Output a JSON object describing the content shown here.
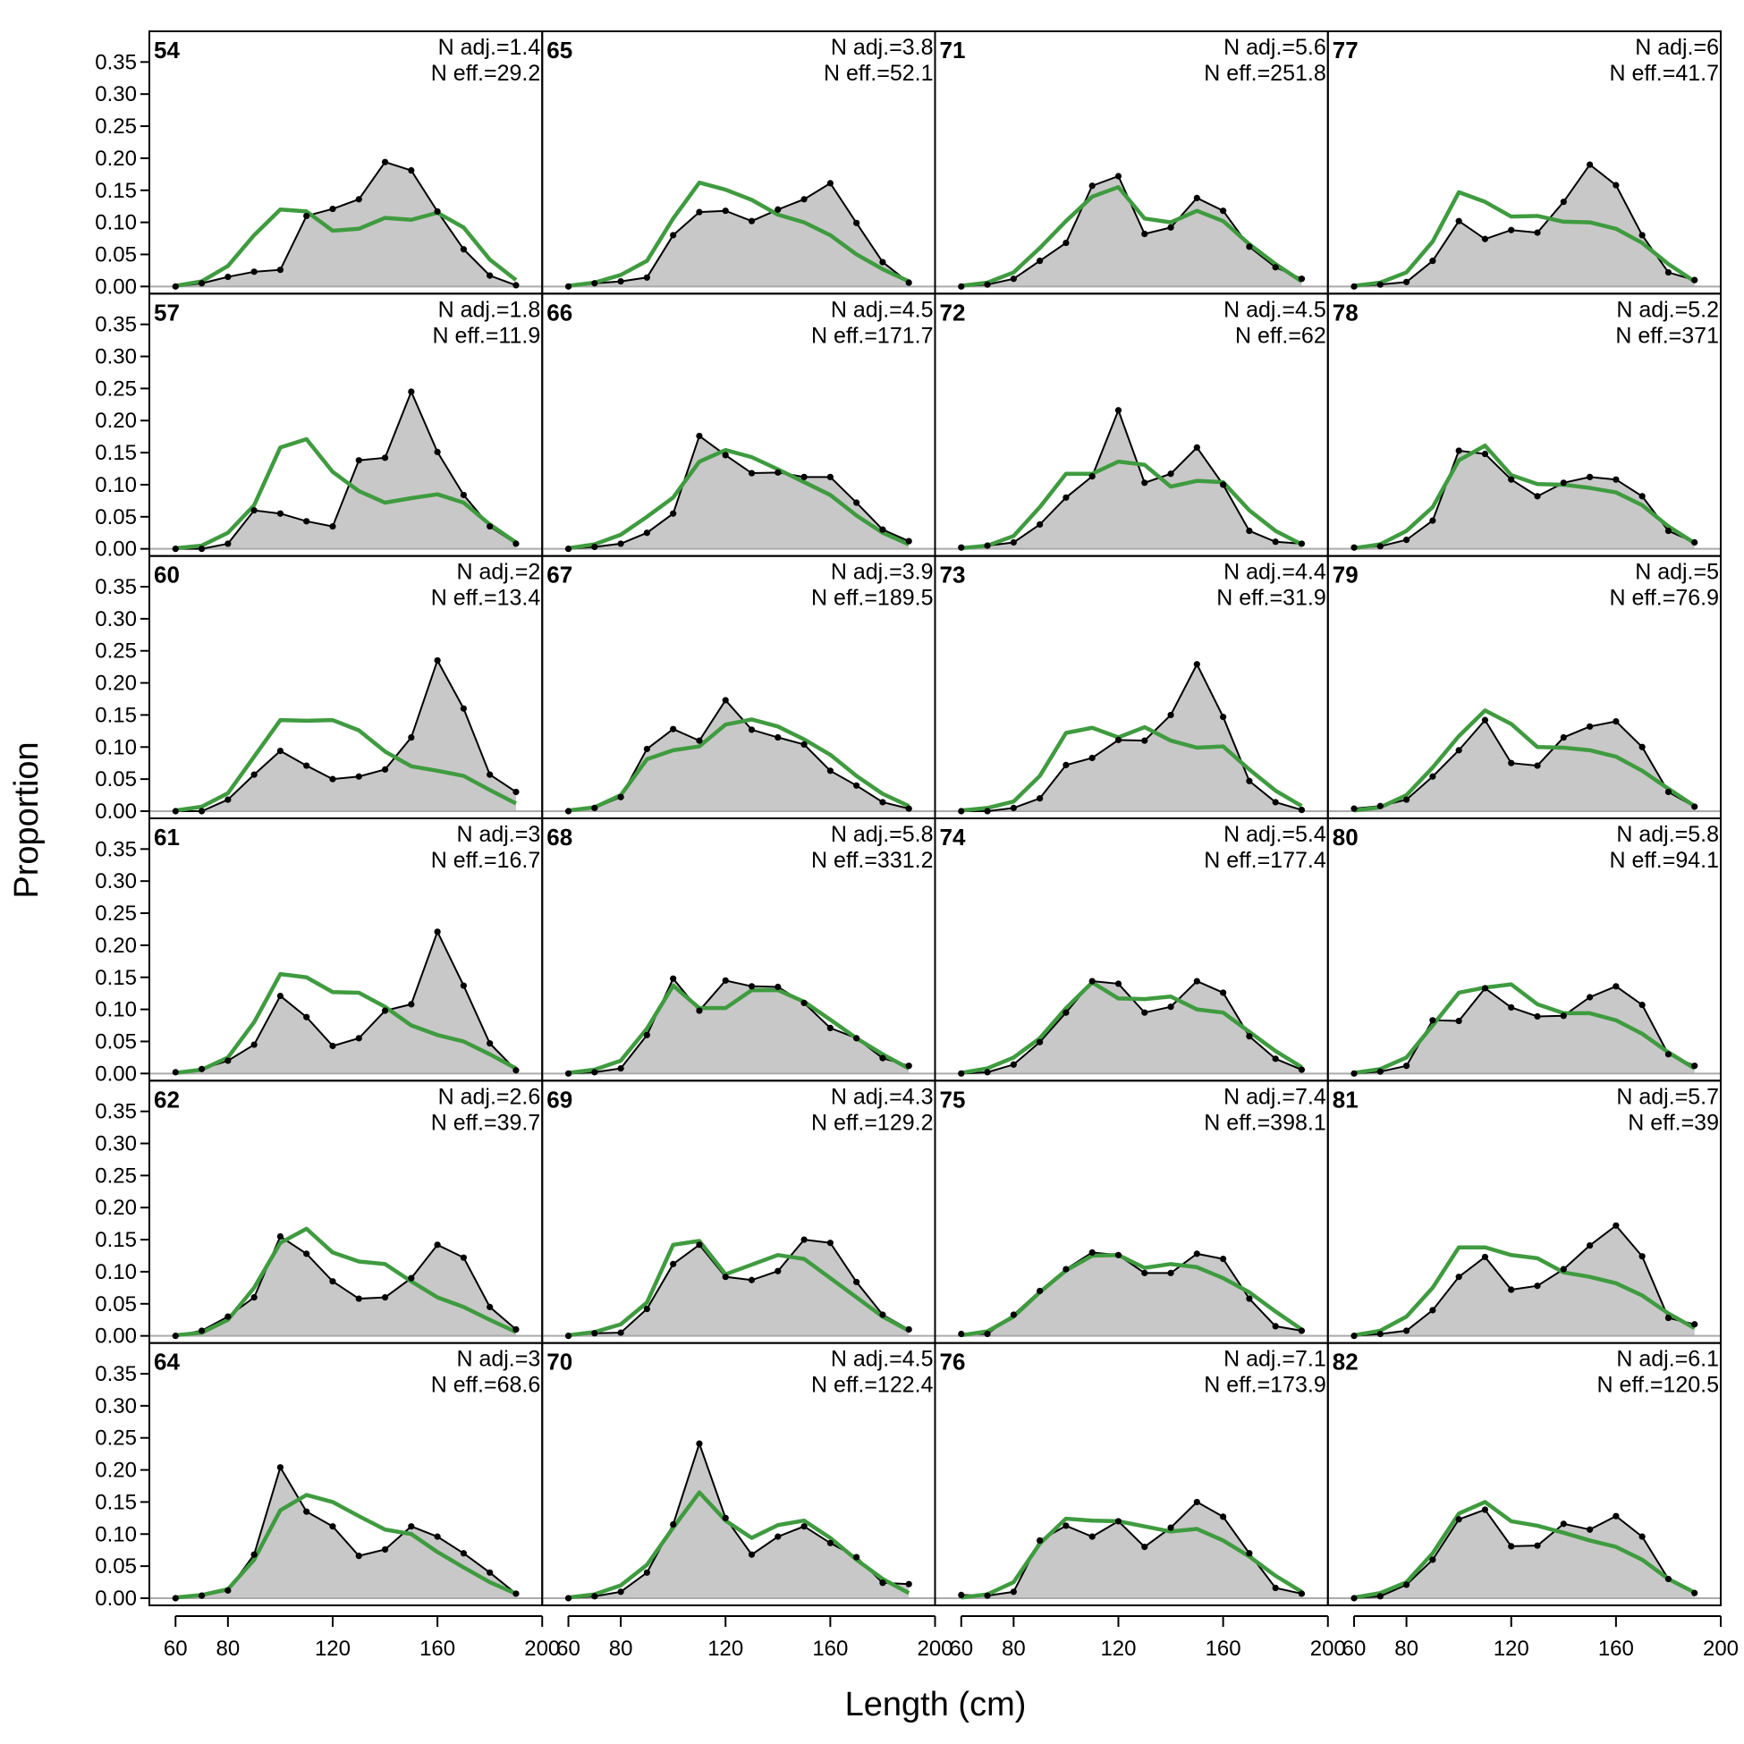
{
  "chart_data": {
    "type": "area",
    "xlabel": "Length (cm)",
    "ylabel": "Proportion",
    "xlim": [
      50,
      200
    ],
    "ylim": [
      0,
      0.37
    ],
    "x_ticks": [
      60,
      80,
      120,
      160,
      200
    ],
    "y_ticks": [
      0.0,
      0.05,
      0.1,
      0.15,
      0.2,
      0.25,
      0.3,
      0.35
    ],
    "y_tick_labels": [
      "0.00",
      "0.05",
      "0.10",
      "0.15",
      "0.20",
      "0.25",
      "0.30",
      "0.35"
    ],
    "grid": false,
    "colors": {
      "observed_fill": "#c8c8c8",
      "observed_line": "#000000",
      "expected_line": "#3f9b3f",
      "zero_line": "#aaaaaa"
    },
    "x": [
      60,
      70,
      80,
      90,
      100,
      110,
      120,
      130,
      140,
      150,
      160,
      170,
      180,
      190
    ],
    "layout": {
      "rows": 6,
      "cols": 4,
      "order": "column-major"
    },
    "panels": [
      {
        "label": "54",
        "n_adj": "N adj.=1.4",
        "n_eff": "N eff.=29.2",
        "observed": [
          0.0,
          0.005,
          0.015,
          0.023,
          0.026,
          0.11,
          0.121,
          0.136,
          0.194,
          0.181,
          0.117,
          0.058,
          0.017,
          0.002
        ],
        "expected": [
          0.001,
          0.008,
          0.032,
          0.08,
          0.12,
          0.117,
          0.087,
          0.09,
          0.107,
          0.104,
          0.115,
          0.092,
          0.042,
          0.01
        ]
      },
      {
        "label": "57",
        "n_adj": "N adj.=1.8",
        "n_eff": "N eff.=11.9",
        "observed": [
          0.0,
          0.0,
          0.008,
          0.06,
          0.055,
          0.043,
          0.035,
          0.138,
          0.142,
          0.245,
          0.151,
          0.084,
          0.035,
          0.008
        ],
        "expected": [
          0.001,
          0.005,
          0.025,
          0.068,
          0.158,
          0.171,
          0.12,
          0.09,
          0.072,
          0.079,
          0.085,
          0.072,
          0.038,
          0.01
        ]
      },
      {
        "label": "60",
        "n_adj": "N adj.=2",
        "n_eff": "N eff.=13.4",
        "observed": [
          0.0,
          0.0,
          0.018,
          0.057,
          0.094,
          0.071,
          0.05,
          0.054,
          0.065,
          0.115,
          0.235,
          0.16,
          0.057,
          0.03
        ],
        "expected": [
          0.001,
          0.007,
          0.028,
          0.085,
          0.142,
          0.141,
          0.142,
          0.126,
          0.093,
          0.07,
          0.063,
          0.055,
          0.033,
          0.012
        ]
      },
      {
        "label": "61",
        "n_adj": "N adj.=3",
        "n_eff": "N eff.=16.7",
        "observed": [
          0.002,
          0.007,
          0.02,
          0.045,
          0.121,
          0.088,
          0.043,
          0.055,
          0.098,
          0.108,
          0.221,
          0.137,
          0.047,
          0.005
        ],
        "expected": [
          0.001,
          0.006,
          0.025,
          0.08,
          0.155,
          0.15,
          0.127,
          0.126,
          0.104,
          0.075,
          0.06,
          0.05,
          0.03,
          0.008
        ]
      },
      {
        "label": "62",
        "n_adj": "N adj.=2.6",
        "n_eff": "N eff.=39.7",
        "observed": [
          0.0,
          0.008,
          0.03,
          0.06,
          0.155,
          0.128,
          0.085,
          0.058,
          0.06,
          0.09,
          0.142,
          0.122,
          0.045,
          0.01
        ],
        "expected": [
          0.001,
          0.005,
          0.025,
          0.075,
          0.145,
          0.167,
          0.13,
          0.116,
          0.112,
          0.085,
          0.06,
          0.045,
          0.025,
          0.006
        ]
      },
      {
        "label": "64",
        "n_adj": "N adj.=3",
        "n_eff": "N eff.=68.6",
        "observed": [
          0.0,
          0.004,
          0.012,
          0.068,
          0.204,
          0.135,
          0.112,
          0.066,
          0.076,
          0.112,
          0.096,
          0.07,
          0.04,
          0.007
        ],
        "expected": [
          0.001,
          0.005,
          0.014,
          0.06,
          0.137,
          0.161,
          0.15,
          0.128,
          0.107,
          0.1,
          0.072,
          0.048,
          0.025,
          0.007
        ]
      },
      {
        "label": "65",
        "n_adj": "N adj.=3.8",
        "n_eff": "N eff.=52.1",
        "observed": [
          0.0,
          0.005,
          0.008,
          0.014,
          0.08,
          0.116,
          0.118,
          0.102,
          0.12,
          0.136,
          0.161,
          0.099,
          0.038,
          0.006
        ],
        "expected": [
          0.001,
          0.006,
          0.018,
          0.04,
          0.106,
          0.162,
          0.151,
          0.135,
          0.112,
          0.1,
          0.08,
          0.05,
          0.027,
          0.008
        ]
      },
      {
        "label": "66",
        "n_adj": "N adj.=4.5",
        "n_eff": "N eff.=171.7",
        "observed": [
          0.0,
          0.003,
          0.008,
          0.025,
          0.055,
          0.176,
          0.146,
          0.118,
          0.119,
          0.112,
          0.112,
          0.072,
          0.03,
          0.012
        ],
        "expected": [
          0.001,
          0.007,
          0.022,
          0.05,
          0.08,
          0.136,
          0.154,
          0.143,
          0.124,
          0.104,
          0.084,
          0.052,
          0.025,
          0.007
        ]
      },
      {
        "label": "67",
        "n_adj": "N adj.=3.9",
        "n_eff": "N eff.=189.5",
        "observed": [
          0.0,
          0.005,
          0.022,
          0.097,
          0.128,
          0.11,
          0.173,
          0.127,
          0.115,
          0.104,
          0.063,
          0.04,
          0.014,
          0.004
        ],
        "expected": [
          0.001,
          0.006,
          0.025,
          0.081,
          0.095,
          0.101,
          0.135,
          0.143,
          0.132,
          0.112,
          0.088,
          0.055,
          0.027,
          0.008
        ]
      },
      {
        "label": "68",
        "n_adj": "N adj.=5.8",
        "n_eff": "N eff.=331.2",
        "observed": [
          0.0,
          0.002,
          0.008,
          0.06,
          0.148,
          0.098,
          0.145,
          0.136,
          0.135,
          0.11,
          0.071,
          0.055,
          0.024,
          0.012
        ],
        "expected": [
          0.001,
          0.006,
          0.02,
          0.07,
          0.137,
          0.102,
          0.102,
          0.13,
          0.13,
          0.112,
          0.084,
          0.055,
          0.03,
          0.008
        ]
      },
      {
        "label": "69",
        "n_adj": "N adj.=4.3",
        "n_eff": "N eff.=129.2",
        "observed": [
          0.0,
          0.004,
          0.005,
          0.042,
          0.112,
          0.142,
          0.092,
          0.087,
          0.101,
          0.15,
          0.145,
          0.084,
          0.033,
          0.01
        ],
        "expected": [
          0.001,
          0.006,
          0.018,
          0.052,
          0.142,
          0.148,
          0.096,
          0.111,
          0.126,
          0.12,
          0.09,
          0.06,
          0.03,
          0.008
        ]
      },
      {
        "label": "70",
        "n_adj": "N adj.=4.5",
        "n_eff": "N eff.=122.4",
        "observed": [
          0.0,
          0.003,
          0.01,
          0.04,
          0.115,
          0.241,
          0.125,
          0.068,
          0.096,
          0.112,
          0.086,
          0.064,
          0.024,
          0.022
        ],
        "expected": [
          0.001,
          0.006,
          0.02,
          0.052,
          0.11,
          0.165,
          0.121,
          0.094,
          0.114,
          0.121,
          0.094,
          0.06,
          0.03,
          0.008
        ]
      },
      {
        "label": "71",
        "n_adj": "N adj.=5.6",
        "n_eff": "N eff.=251.8",
        "observed": [
          0.0,
          0.003,
          0.012,
          0.04,
          0.068,
          0.157,
          0.172,
          0.082,
          0.092,
          0.138,
          0.118,
          0.062,
          0.03,
          0.012
        ],
        "expected": [
          0.001,
          0.006,
          0.022,
          0.06,
          0.102,
          0.14,
          0.155,
          0.106,
          0.1,
          0.118,
          0.102,
          0.066,
          0.035,
          0.008
        ]
      },
      {
        "label": "72",
        "n_adj": "N adj.=4.5",
        "n_eff": "N eff.=62",
        "observed": [
          0.002,
          0.005,
          0.01,
          0.038,
          0.08,
          0.113,
          0.216,
          0.103,
          0.117,
          0.158,
          0.1,
          0.028,
          0.011,
          0.008
        ],
        "expected": [
          0.001,
          0.005,
          0.02,
          0.065,
          0.117,
          0.117,
          0.136,
          0.131,
          0.097,
          0.106,
          0.104,
          0.06,
          0.028,
          0.007
        ]
      },
      {
        "label": "73",
        "n_adj": "N adj.=4.4",
        "n_eff": "N eff.=31.9",
        "observed": [
          0.0,
          0.0,
          0.005,
          0.02,
          0.072,
          0.083,
          0.111,
          0.11,
          0.15,
          0.229,
          0.147,
          0.047,
          0.014,
          0.002
        ],
        "expected": [
          0.001,
          0.005,
          0.015,
          0.055,
          0.122,
          0.13,
          0.115,
          0.131,
          0.11,
          0.099,
          0.101,
          0.065,
          0.032,
          0.008
        ]
      },
      {
        "label": "74",
        "n_adj": "N adj.=5.4",
        "n_eff": "N eff.=177.4",
        "observed": [
          0.0,
          0.002,
          0.014,
          0.049,
          0.095,
          0.144,
          0.14,
          0.095,
          0.104,
          0.144,
          0.126,
          0.058,
          0.023,
          0.006
        ],
        "expected": [
          0.001,
          0.008,
          0.025,
          0.055,
          0.102,
          0.142,
          0.117,
          0.116,
          0.12,
          0.1,
          0.095,
          0.065,
          0.035,
          0.01
        ]
      },
      {
        "label": "75",
        "n_adj": "N adj.=7.4",
        "n_eff": "N eff.=398.1",
        "observed": [
          0.003,
          0.003,
          0.033,
          0.07,
          0.104,
          0.13,
          0.126,
          0.098,
          0.098,
          0.128,
          0.12,
          0.058,
          0.015,
          0.008
        ],
        "expected": [
          0.001,
          0.007,
          0.03,
          0.068,
          0.102,
          0.125,
          0.126,
          0.106,
          0.112,
          0.107,
          0.09,
          0.068,
          0.038,
          0.01
        ]
      },
      {
        "label": "76",
        "n_adj": "N adj.=7.1",
        "n_eff": "N eff.=173.9",
        "observed": [
          0.005,
          0.004,
          0.01,
          0.09,
          0.113,
          0.096,
          0.12,
          0.08,
          0.11,
          0.15,
          0.127,
          0.07,
          0.016,
          0.007
        ],
        "expected": [
          0.001,
          0.006,
          0.025,
          0.085,
          0.124,
          0.121,
          0.12,
          0.112,
          0.104,
          0.108,
          0.09,
          0.065,
          0.035,
          0.01
        ]
      },
      {
        "label": "77",
        "n_adj": "N adj.=6",
        "n_eff": "N eff.=41.7",
        "observed": [
          0.0,
          0.003,
          0.007,
          0.04,
          0.102,
          0.074,
          0.088,
          0.084,
          0.132,
          0.19,
          0.158,
          0.08,
          0.022,
          0.01
        ],
        "expected": [
          0.001,
          0.006,
          0.022,
          0.07,
          0.147,
          0.132,
          0.109,
          0.11,
          0.101,
          0.1,
          0.09,
          0.068,
          0.035,
          0.008
        ]
      },
      {
        "label": "78",
        "n_adj": "N adj.=5.2",
        "n_eff": "N eff.=371",
        "observed": [
          0.002,
          0.004,
          0.014,
          0.044,
          0.153,
          0.148,
          0.108,
          0.082,
          0.103,
          0.112,
          0.108,
          0.082,
          0.028,
          0.01
        ],
        "expected": [
          0.001,
          0.007,
          0.028,
          0.065,
          0.138,
          0.161,
          0.115,
          0.101,
          0.1,
          0.095,
          0.088,
          0.068,
          0.035,
          0.009
        ]
      },
      {
        "label": "79",
        "n_adj": "N adj.=5",
        "n_eff": "N eff.=76.9",
        "observed": [
          0.004,
          0.008,
          0.018,
          0.054,
          0.095,
          0.142,
          0.075,
          0.071,
          0.115,
          0.132,
          0.14,
          0.1,
          0.03,
          0.007
        ],
        "expected": [
          0.001,
          0.006,
          0.025,
          0.068,
          0.117,
          0.157,
          0.136,
          0.1,
          0.099,
          0.095,
          0.085,
          0.063,
          0.035,
          0.008
        ]
      },
      {
        "label": "80",
        "n_adj": "N adj.=5.8",
        "n_eff": "N eff.=94.1",
        "observed": [
          0.0,
          0.003,
          0.012,
          0.083,
          0.082,
          0.133,
          0.103,
          0.089,
          0.09,
          0.119,
          0.136,
          0.107,
          0.03,
          0.012
        ],
        "expected": [
          0.001,
          0.007,
          0.025,
          0.075,
          0.126,
          0.134,
          0.139,
          0.108,
          0.094,
          0.094,
          0.083,
          0.062,
          0.033,
          0.008
        ]
      },
      {
        "label": "81",
        "n_adj": "N adj.=5.7",
        "n_eff": "N eff.=39",
        "observed": [
          0.0,
          0.003,
          0.008,
          0.04,
          0.092,
          0.123,
          0.072,
          0.078,
          0.104,
          0.141,
          0.172,
          0.124,
          0.028,
          0.018
        ],
        "expected": [
          0.001,
          0.008,
          0.03,
          0.075,
          0.138,
          0.138,
          0.126,
          0.121,
          0.099,
          0.092,
          0.082,
          0.063,
          0.035,
          0.012
        ]
      },
      {
        "label": "82",
        "n_adj": "N adj.=6.1",
        "n_eff": "N eff.=120.5",
        "observed": [
          0.0,
          0.003,
          0.021,
          0.06,
          0.123,
          0.138,
          0.081,
          0.082,
          0.116,
          0.107,
          0.128,
          0.096,
          0.03,
          0.008
        ],
        "expected": [
          0.001,
          0.008,
          0.025,
          0.07,
          0.132,
          0.15,
          0.12,
          0.113,
          0.102,
          0.09,
          0.08,
          0.06,
          0.03,
          0.009
        ]
      }
    ]
  }
}
